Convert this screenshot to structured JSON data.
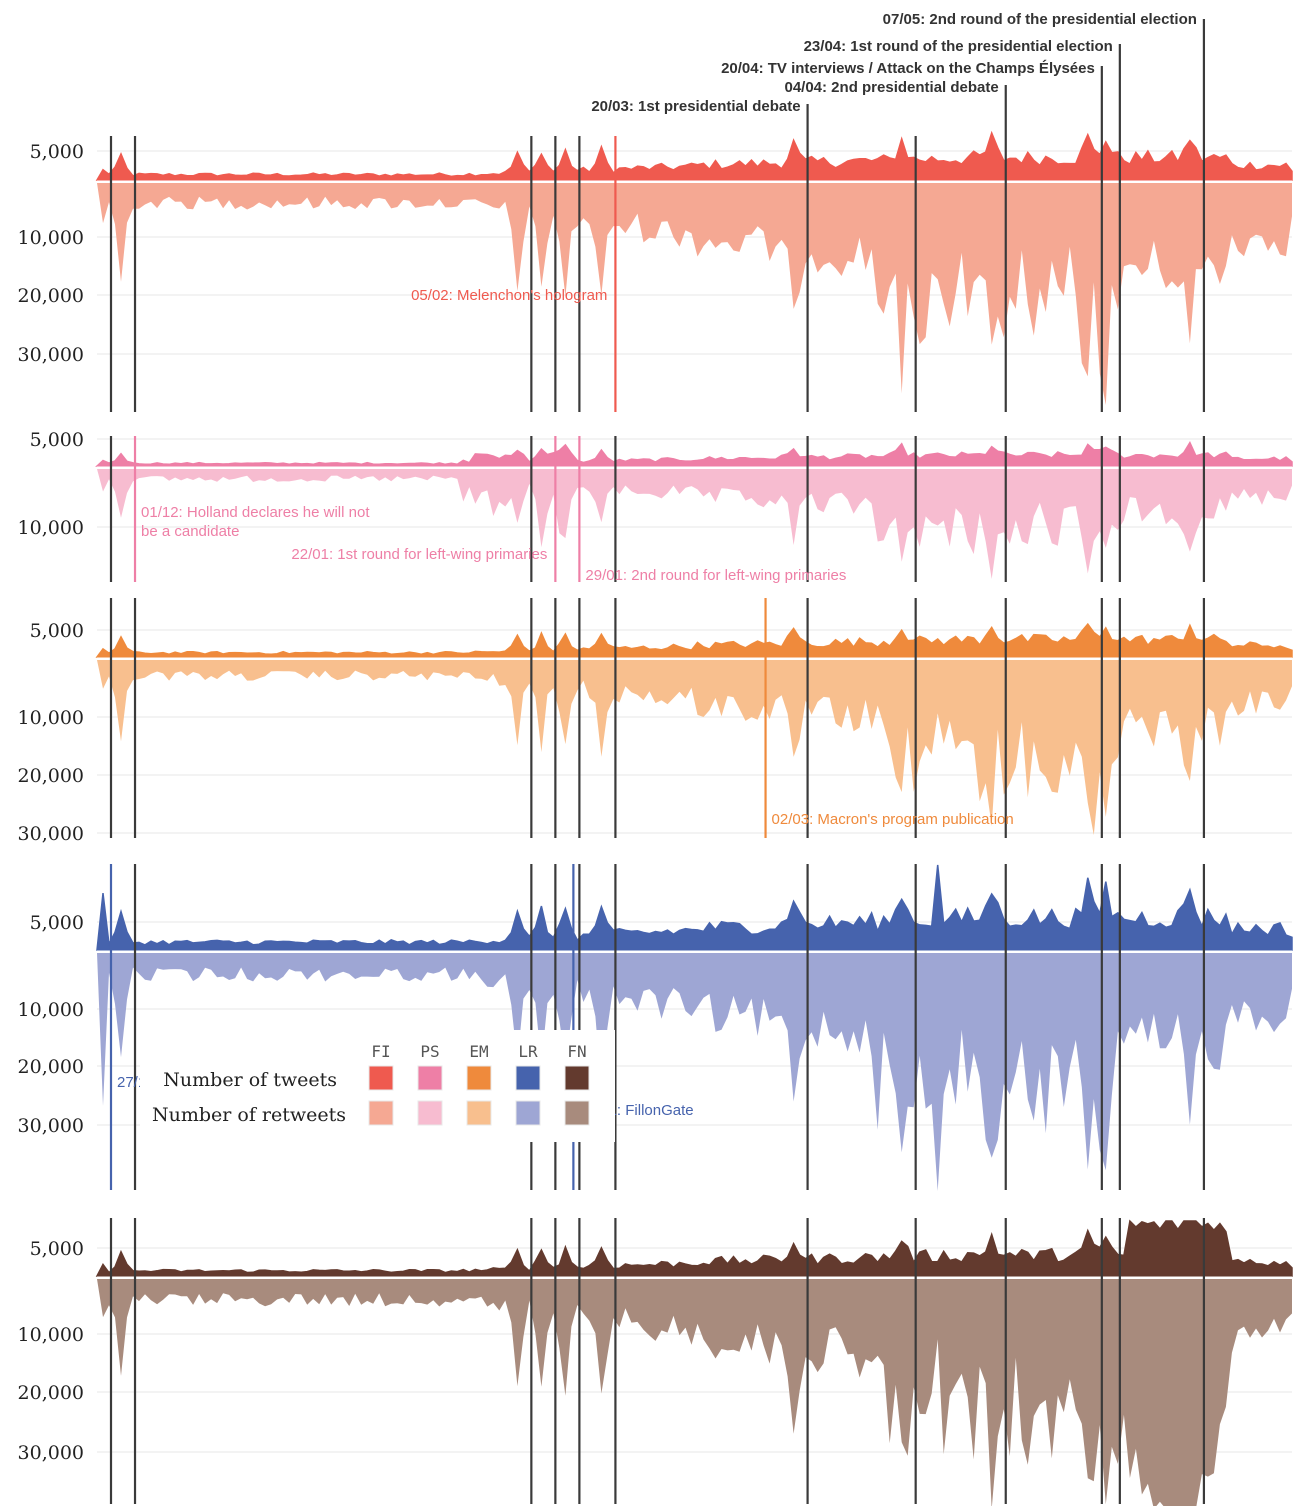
{
  "chart_data": {
    "type": "area",
    "n_days": 200,
    "y_ticks_tweets": [
      "5,000"
    ],
    "y_ticks_retweets": [
      "10,000",
      "20,000",
      "30,000"
    ],
    "series_codes": [
      "FI",
      "PS",
      "EM",
      "LR",
      "FN"
    ],
    "series_colors": {
      "FI": {
        "tweets": "#ef5a4f",
        "retweets": "#f5a893"
      },
      "PS": {
        "tweets": "#ee7fa6",
        "retweets": "#f7bcd0"
      },
      "EM": {
        "tweets": "#ef8a3c",
        "retweets": "#f8bf8e"
      },
      "LR": {
        "tweets": "#4663ad",
        "retweets": "#9ea6d4"
      },
      "FN": {
        "tweets": "#633a2e",
        "retweets": "#a88b7d"
      }
    },
    "common_events": [
      {
        "day": 0,
        "label": ""
      },
      {
        "day": 4,
        "label": ""
      },
      {
        "day": 70,
        "label": ""
      },
      {
        "day": 74,
        "label": ""
      },
      {
        "day": 78,
        "label": ""
      },
      {
        "day": 84,
        "label": ""
      },
      {
        "day": 116,
        "label": "20/03: 1st presidential debate"
      },
      {
        "day": 134,
        "label": ""
      },
      {
        "day": 149,
        "label": "04/04: 2nd presidential debate"
      },
      {
        "day": 165,
        "label": "20/04: TV interviews / Attack on the Champs Élysées"
      },
      {
        "day": 168,
        "label": "23/04: 1st round of the presidential election"
      },
      {
        "day": 182,
        "label": "07/05: 2nd round of the presidential election"
      }
    ],
    "panel_events": {
      "FI": [
        {
          "day": 84,
          "label": "05/02: Melenchon's hologram"
        }
      ],
      "PS": [
        {
          "day": 4,
          "label": "01/12: Holland declares he will not",
          "label2": "be a candidate"
        },
        {
          "day": 74,
          "label": "22/01: 1st round for left-wing primaries"
        },
        {
          "day": 78,
          "label": "29/01: 2nd round for left-wing primaries"
        }
      ],
      "EM": [
        {
          "day": 109,
          "label": "02/03: Macron's program publication"
        }
      ],
      "LR": [
        {
          "day": 0,
          "label": "27/11: 2nd round for right-wing primaries"
        },
        {
          "day": 77,
          "label": "25/01: FillonGate"
        }
      ],
      "FN": []
    },
    "legend": {
      "codes": [
        "FI",
        "PS",
        "EM",
        "LR",
        "FN"
      ],
      "row_tweets": "Number of tweets",
      "row_retweets": "Number of retweets"
    }
  }
}
